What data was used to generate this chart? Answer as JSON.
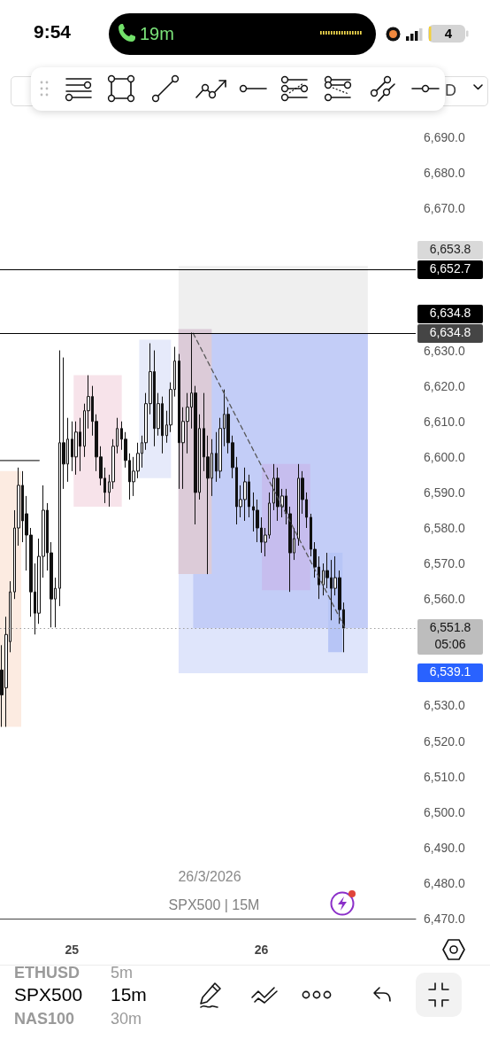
{
  "chart_data": {
    "type": "candlestick",
    "title": "SPX500 | 15M",
    "annotations": [
      "9:54",
      "19m",
      "4",
      "D",
      "26/3/2026",
      "05:06",
      "ETHUSD",
      "5m",
      "SPX500",
      "15m",
      "NAS100",
      "30m",
      "6,653.8",
      "6,634.8",
      "6,539.1"
    ],
    "x": [
      24.63,
      24.652,
      24.674,
      24.696,
      24.717,
      24.739,
      24.761,
      24.783,
      24.804,
      24.826,
      24.848,
      24.87,
      24.891,
      24.913,
      24.935,
      24.957,
      24.978,
      25.0,
      25.022,
      25.043,
      25.065,
      25.087,
      25.109,
      25.13,
      25.152,
      25.174,
      25.196,
      25.217,
      25.239,
      25.261,
      25.283,
      25.304,
      25.326,
      25.348,
      25.37,
      25.391,
      25.413,
      25.435,
      25.457,
      25.478,
      25.5,
      25.522,
      25.543,
      25.565,
      25.587,
      25.609,
      25.63,
      25.652,
      25.674,
      25.696,
      25.717,
      25.739,
      25.761,
      25.783,
      25.804,
      25.826,
      25.848,
      25.87,
      25.891,
      25.913,
      25.935,
      25.957,
      25.978,
      26.0,
      26.022,
      26.043,
      26.065,
      26.087,
      26.109,
      26.13,
      26.152,
      26.174,
      26.196,
      26.217,
      26.239,
      26.261,
      26.283,
      26.304,
      26.326,
      26.348,
      26.37,
      26.391,
      26.413,
      26.435
    ],
    "ohlc": [
      [
        6540,
        6547,
        6524,
        6533
      ],
      [
        6535,
        6555,
        6524,
        6550
      ],
      [
        6548,
        6565,
        6545,
        6562
      ],
      [
        6562,
        6585,
        6560,
        6580
      ],
      [
        6580,
        6597,
        6575,
        6592
      ],
      [
        6592,
        6596,
        6576,
        6582
      ],
      [
        6584,
        6589,
        6568,
        6578
      ],
      [
        6578,
        6580,
        6555,
        6562
      ],
      [
        6562,
        6570,
        6550,
        6556
      ],
      [
        6556,
        6577,
        6553,
        6572
      ],
      [
        6572,
        6592,
        6566,
        6585
      ],
      [
        6585,
        6587,
        6568,
        6573
      ],
      [
        6573,
        6576,
        6552,
        6560
      ],
      [
        6560,
        6566,
        6552,
        6563
      ],
      [
        6563,
        6630,
        6558,
        6604
      ],
      [
        6604,
        6628,
        6591,
        6598
      ],
      [
        6598,
        6611,
        6593,
        6605
      ],
      [
        6605,
        6610,
        6596,
        6600
      ],
      [
        6600,
        6610,
        6595,
        6607
      ],
      [
        6607,
        6611,
        6596,
        6603
      ],
      [
        6603,
        6615,
        6600,
        6613
      ],
      [
        6613,
        6623,
        6608,
        6617
      ],
      [
        6617,
        6620,
        6606,
        6610
      ],
      [
        6610,
        6612,
        6596,
        6600
      ],
      [
        6600,
        6603,
        6592,
        6594
      ],
      [
        6594,
        6597,
        6587,
        6590
      ],
      [
        6590,
        6595,
        6586,
        6593
      ],
      [
        6593,
        6605,
        6591,
        6603
      ],
      [
        6603,
        6611,
        6601,
        6608
      ],
      [
        6608,
        6610,
        6602,
        6605
      ],
      [
        6605,
        6607,
        6597,
        6599
      ],
      [
        6599,
        6601,
        6588,
        6593
      ],
      [
        6593,
        6600,
        6589,
        6596
      ],
      [
        6596,
        6604,
        6594,
        6601
      ],
      [
        6601,
        6606,
        6597,
        6604
      ],
      [
        6604,
        6618,
        6602,
        6615
      ],
      [
        6615,
        6632,
        6612,
        6624
      ],
      [
        6624,
        6630,
        6603,
        6608
      ],
      [
        6608,
        6618,
        6606,
        6615
      ],
      [
        6615,
        6617,
        6601,
        6606
      ],
      [
        6606,
        6613,
        6604,
        6609
      ],
      [
        6609,
        6621,
        6607,
        6619
      ],
      [
        6619,
        6631,
        6617,
        6627
      ],
      [
        6627,
        6629,
        6591,
        6604
      ],
      [
        6604,
        6614,
        6591,
        6610
      ],
      [
        6610,
        6618,
        6601,
        6614
      ],
      [
        6614,
        6635,
        6608,
        6618
      ],
      [
        6618,
        6620,
        6581,
        6590
      ],
      [
        6590,
        6612,
        6588,
        6608
      ],
      [
        6608,
        6618,
        6596,
        6600
      ],
      [
        6600,
        6606,
        6567,
        6594
      ],
      [
        6594,
        6605,
        6589,
        6601
      ],
      [
        6601,
        6607,
        6593,
        6596
      ],
      [
        6596,
        6611,
        6594,
        6608
      ],
      [
        6608,
        6619,
        6603,
        6612
      ],
      [
        6612,
        6614,
        6601,
        6604
      ],
      [
        6604,
        6606,
        6594,
        6597
      ],
      [
        6597,
        6600,
        6581,
        6586
      ],
      [
        6586,
        6592,
        6583,
        6588
      ],
      [
        6588,
        6597,
        6582,
        6593
      ],
      [
        6593,
        6595,
        6583,
        6586
      ],
      [
        6586,
        6590,
        6579,
        6585
      ],
      [
        6585,
        6588,
        6576,
        6580
      ],
      [
        6580,
        6583,
        6573,
        6576
      ],
      [
        6576,
        6580,
        6572,
        6578
      ],
      [
        6578,
        6590,
        6577,
        6587
      ],
      [
        6587,
        6598,
        6585,
        6594
      ],
      [
        6594,
        6597,
        6582,
        6586
      ],
      [
        6586,
        6591,
        6583,
        6589
      ],
      [
        6589,
        6591,
        6581,
        6584
      ],
      [
        6584,
        6586,
        6562,
        6573
      ],
      [
        6573,
        6580,
        6571,
        6577
      ],
      [
        6577,
        6598,
        6575,
        6594
      ],
      [
        6594,
        6596,
        6584,
        6588
      ],
      [
        6588,
        6590,
        6580,
        6583
      ],
      [
        6583,
        6584,
        6572,
        6574
      ],
      [
        6574,
        6576,
        6566,
        6569
      ],
      [
        6569,
        6572,
        6560,
        6564
      ],
      [
        6564,
        6570,
        6561,
        6568
      ],
      [
        6568,
        6573,
        6563,
        6566
      ],
      [
        6566,
        6571,
        6554,
        6563
      ],
      [
        6563,
        6572,
        6561,
        6566
      ],
      [
        6566,
        6568,
        6553,
        6557
      ],
      [
        6557,
        6559,
        6545,
        6551.8
      ]
    ],
    "color": "#111111",
    "series": [
      {
        "type": "line",
        "x": [
          25.563,
          26.562
        ],
        "values": [
          null,
          null
        ],
        "lower": [
          6634.8,
          6634.8
        ],
        "upper": [
          6653.8,
          6653.8
        ],
        "color": "#efefef"
      },
      {
        "type": "line",
        "x": [
          25.563,
          26.562
        ],
        "values": [
          null,
          null
        ],
        "lower": [
          6539.1,
          6539.1
        ],
        "upper": [
          6634.8,
          6634.8
        ],
        "color": "#dfe5fb"
      },
      {
        "type": "line",
        "x": [
          25.64,
          26.562
        ],
        "values": [
          null,
          null
        ],
        "lower": [
          6551.8,
          6551.8
        ],
        "upper": [
          6634.8,
          6634.8
        ],
        "color": "#c3cdf7"
      },
      {
        "type": "line",
        "x": [
          24.62,
          24.732
        ],
        "values": [
          null,
          null
        ],
        "lower": [
          6524,
          6524
        ],
        "upper": [
          6596,
          6596
        ],
        "color": "#fcebe1"
      },
      {
        "type": "line",
        "x": [
          25.009,
          25.263
        ],
        "values": [
          null,
          null
        ],
        "lower": [
          6586,
          6586
        ],
        "upper": [
          6623,
          6623
        ],
        "color": "#f7e3ea"
      },
      {
        "type": "line",
        "x": [
          25.355,
          25.523
        ],
        "values": [
          null,
          null
        ],
        "lower": [
          6594,
          6594
        ],
        "upper": [
          6633,
          6633
        ],
        "color": "#e6eafa"
      },
      {
        "type": "line",
        "x": [
          25.562,
          25.738
        ],
        "values": [
          null,
          null
        ],
        "lower": [
          6567,
          6567
        ],
        "upper": [
          6636,
          6636
        ],
        "color": "#dccbd8"
      },
      {
        "type": "line",
        "x": [
          26.003,
          26.258
        ],
        "values": [
          null,
          null
        ],
        "lower": [
          6562.5,
          6562.5
        ],
        "upper": [
          6598,
          6598
        ],
        "color": "#c6bdee"
      },
      {
        "type": "line",
        "x": [
          26.353,
          26.429
        ],
        "values": [
          null,
          null
        ],
        "lower": [
          6545,
          6545
        ],
        "upper": [
          6573,
          6573
        ],
        "color": "#b7c5f6"
      },
      {
        "type": "line",
        "x": [
          24.62,
          24.827
        ],
        "values": [
          6599,
          6599
        ],
        "color": "#333333",
        "line_style": "solid"
      },
      {
        "type": "line",
        "x": [
          25.64,
          26.44
        ],
        "values": [
          6634.8,
          6552
        ],
        "color": "#555555",
        "line_style": "dashed"
      }
    ],
    "marker": "none",
    "xlim": [
      24.62,
      26.815
    ],
    "xticks": [
      25,
      26
    ],
    "ylim": [
      6470,
      6690
    ],
    "yticks": [
      {
        "value": 6470,
        "label": "6,470.0"
      },
      {
        "value": 6480,
        "label": "6,480.0"
      },
      {
        "value": 6490,
        "label": "6,490.0"
      },
      {
        "value": 6500,
        "label": "6,500.0"
      },
      {
        "value": 6510,
        "label": "6,510.0"
      },
      {
        "value": 6520,
        "label": "6,520.0"
      },
      {
        "value": 6530,
        "label": "6,530.0"
      },
      {
        "value": 6560,
        "label": "6,560.0"
      },
      {
        "value": 6570,
        "label": "6,570.0"
      },
      {
        "value": 6580,
        "label": "6,580.0"
      },
      {
        "value": 6590,
        "label": "6,590.0"
      },
      {
        "value": 6600,
        "label": "6,600.0"
      },
      {
        "value": 6610,
        "label": "6,610.0"
      },
      {
        "value": 6620,
        "label": "6,620.0"
      },
      {
        "value": 6630,
        "label": "6,630.0"
      },
      {
        "value": 6670,
        "label": "6,670.0"
      },
      {
        "value": 6680,
        "label": "6,680.0"
      },
      {
        "value": 6690,
        "label": "6,690.0"
      }
    ],
    "ref_lines": [
      {
        "axis": "y",
        "value": 6652.7,
        "label": "6,652.7",
        "color": "#000000"
      },
      {
        "axis": "y",
        "value": 6634.8,
        "label": "6,634.8",
        "color": "#000000"
      },
      {
        "axis": "y",
        "value": 6551.8,
        "label": "6,551.8",
        "color": "#9e9e9e",
        "line_style": "dotted"
      }
    ]
  }
}
